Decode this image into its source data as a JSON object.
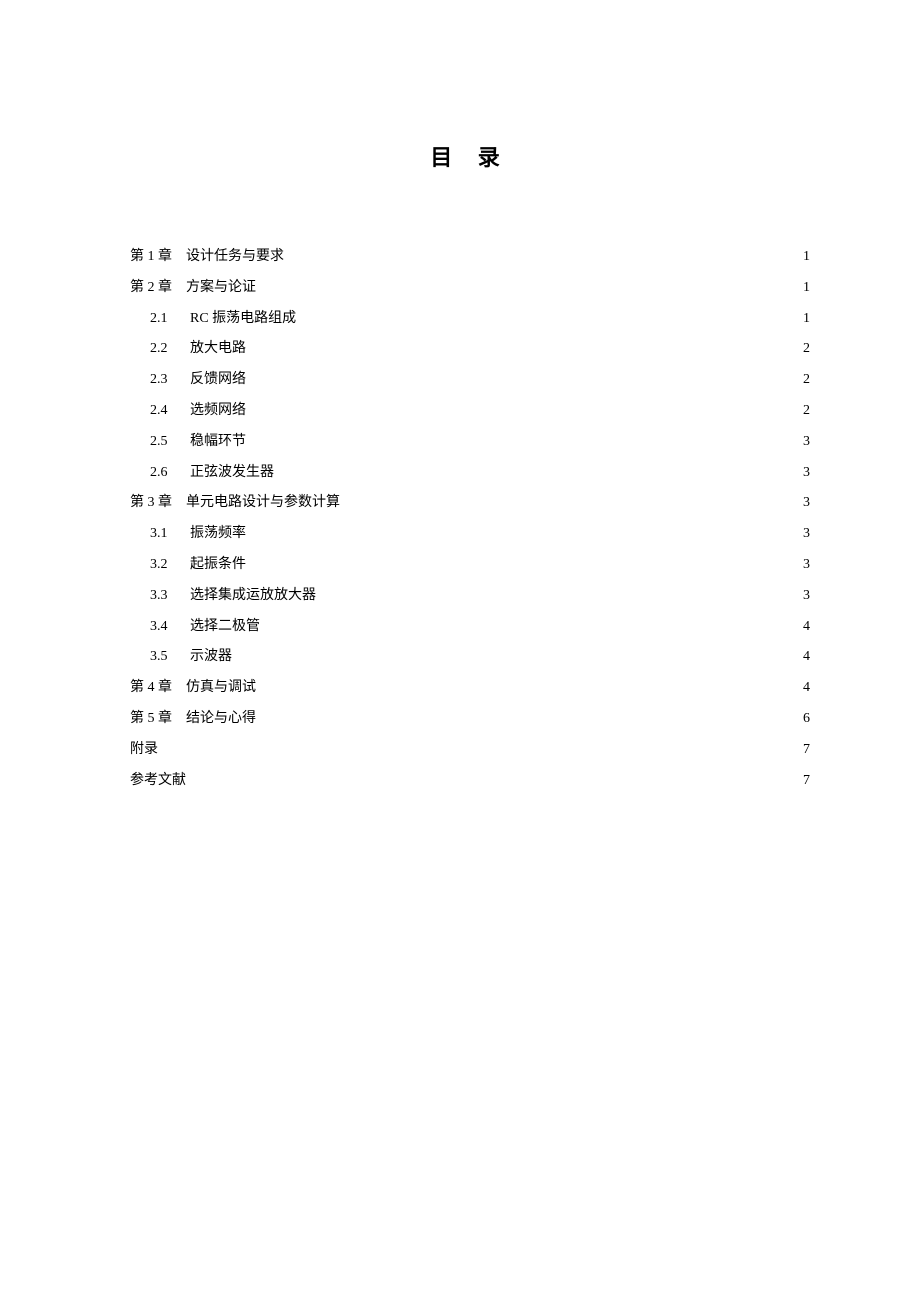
{
  "title": "目 录",
  "entries": [
    {
      "level": "chapter",
      "label": "第 1 章",
      "title": "设计任务与要求",
      "page": "1"
    },
    {
      "level": "chapter",
      "label": "第 2 章",
      "title": "方案与论证",
      "page": "1"
    },
    {
      "level": "section",
      "num": "2.1",
      "title": "RC 振荡电路组成",
      "page": "1"
    },
    {
      "level": "section",
      "num": "2.2",
      "title": "放大电路",
      "page": "2"
    },
    {
      "level": "section",
      "num": "2.3",
      "title": "反馈网络",
      "page": "2"
    },
    {
      "level": "section",
      "num": "2.4",
      "title": "选频网络",
      "page": "2"
    },
    {
      "level": "section",
      "num": "2.5",
      "title": "稳幅环节",
      "page": "3"
    },
    {
      "level": "section",
      "num": "2.6",
      "title": "正弦波发生器",
      "page": "3"
    },
    {
      "level": "chapter",
      "label": "第 3 章",
      "title": "单元电路设计与参数计算",
      "page": "3"
    },
    {
      "level": "section",
      "num": "3.1",
      "title": "振荡频率",
      "page": "3"
    },
    {
      "level": "section",
      "num": "3.2",
      "title": "起振条件",
      "page": "3"
    },
    {
      "level": "section",
      "num": "3.3",
      "title": "选择集成运放放大器",
      "page": "3"
    },
    {
      "level": "section",
      "num": "3.4",
      "title": "选择二极管",
      "page": "4"
    },
    {
      "level": "section",
      "num": "3.5",
      "title": "示波器",
      "page": "4"
    },
    {
      "level": "chapter",
      "label": "第 4 章",
      "title": "仿真与调试",
      "page": "4"
    },
    {
      "level": "chapter",
      "label": "第 5 章",
      "title": "结论与心得",
      "page": "6"
    },
    {
      "level": "simple",
      "title": "附录",
      "page": "7"
    },
    {
      "level": "simple",
      "title": "参考文献",
      "page": "7"
    }
  ]
}
